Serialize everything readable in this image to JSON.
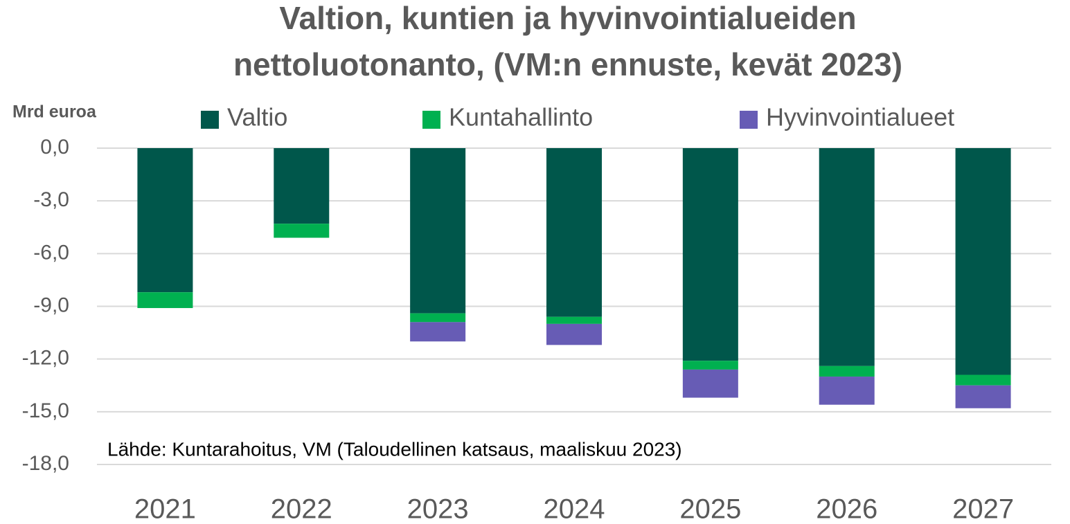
{
  "chart_data": {
    "type": "stacked_bar",
    "title": [
      "Valtion, kuntien ja hyvinvointialueiden",
      "nettoluotonanto, (VM:n ennuste, kevät 2023)"
    ],
    "y_label": "Mrd euroa",
    "annotation": "Lähde: Kuntarahoitus, VM (Taloudellinen katsaus, maaliskuu 2023)",
    "categories": [
      "2021",
      "2022",
      "2023",
      "2024",
      "2025",
      "2026",
      "2027"
    ],
    "series": [
      {
        "name": "Valtio",
        "color": "#00574b",
        "values": [
          -8.2,
          -4.3,
          -9.4,
          -9.6,
          -12.1,
          -12.4,
          -12.9
        ]
      },
      {
        "name": "Kuntahallinto",
        "color": "#00b050",
        "values": [
          -0.9,
          -0.8,
          -0.5,
          -0.4,
          -0.5,
          -0.6,
          -0.6
        ]
      },
      {
        "name": "Hyvinvointialueet",
        "color": "#675cb5",
        "values": [
          null,
          null,
          -1.1,
          -1.2,
          -1.6,
          -1.6,
          -1.3
        ]
      }
    ],
    "ylim": [
      -18,
      0
    ],
    "yticks": [
      {
        "value": 0,
        "label": "0,0"
      },
      {
        "value": -3,
        "label": "-3,0"
      },
      {
        "value": -6,
        "label": "-6,0"
      },
      {
        "value": -9,
        "label": "-9,0"
      },
      {
        "value": -12,
        "label": "-12,0"
      },
      {
        "value": -15,
        "label": "-15,0"
      },
      {
        "value": -18,
        "label": "-18,0"
      }
    ],
    "grid": true
  }
}
